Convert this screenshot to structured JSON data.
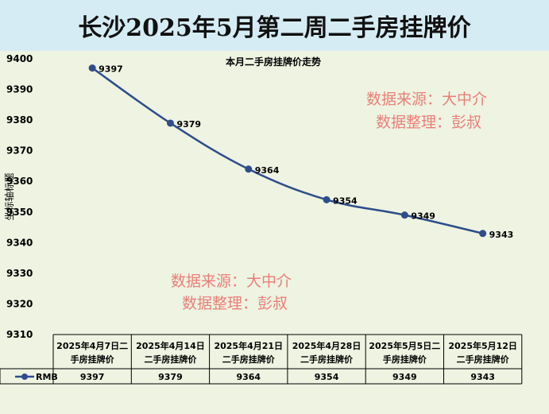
{
  "page_title": "长沙2025年5月第二周二手房挂牌价",
  "watermark": {
    "line1": "数据来源：大中介",
    "line2": "数据整理：彭叔"
  },
  "colors": {
    "line": "#2e4d8a",
    "title_bg": "#d6ecf4",
    "plot_bg": "#eef3e2",
    "watermark": "#e98079"
  },
  "chart_data": {
    "type": "line",
    "title": "本月二手房挂牌价走势",
    "ylabel": "坐标轴标题",
    "xlabel": "",
    "ylim": [
      9310,
      9400
    ],
    "ytick_step": 10,
    "yticks": [
      "9310",
      "9320",
      "9330",
      "9340",
      "9350",
      "9360",
      "9370",
      "9380",
      "9390",
      "9400"
    ],
    "categories": [
      [
        "2025年4月7日二",
        "手房挂牌价"
      ],
      [
        "2025年4月14日",
        "二手房挂牌价"
      ],
      [
        "2025年4月21日",
        "二手房挂牌价"
      ],
      [
        "2025年4月28日",
        "二手房挂牌价"
      ],
      [
        "2025年5月5日二",
        "手房挂牌价"
      ],
      [
        "2025年5月12日",
        "二手房挂牌价"
      ]
    ],
    "series": [
      {
        "name": "RMB",
        "values": [
          9397,
          9379,
          9364,
          9354,
          9349,
          9343
        ]
      }
    ],
    "grid": false,
    "legend": "data-table"
  }
}
